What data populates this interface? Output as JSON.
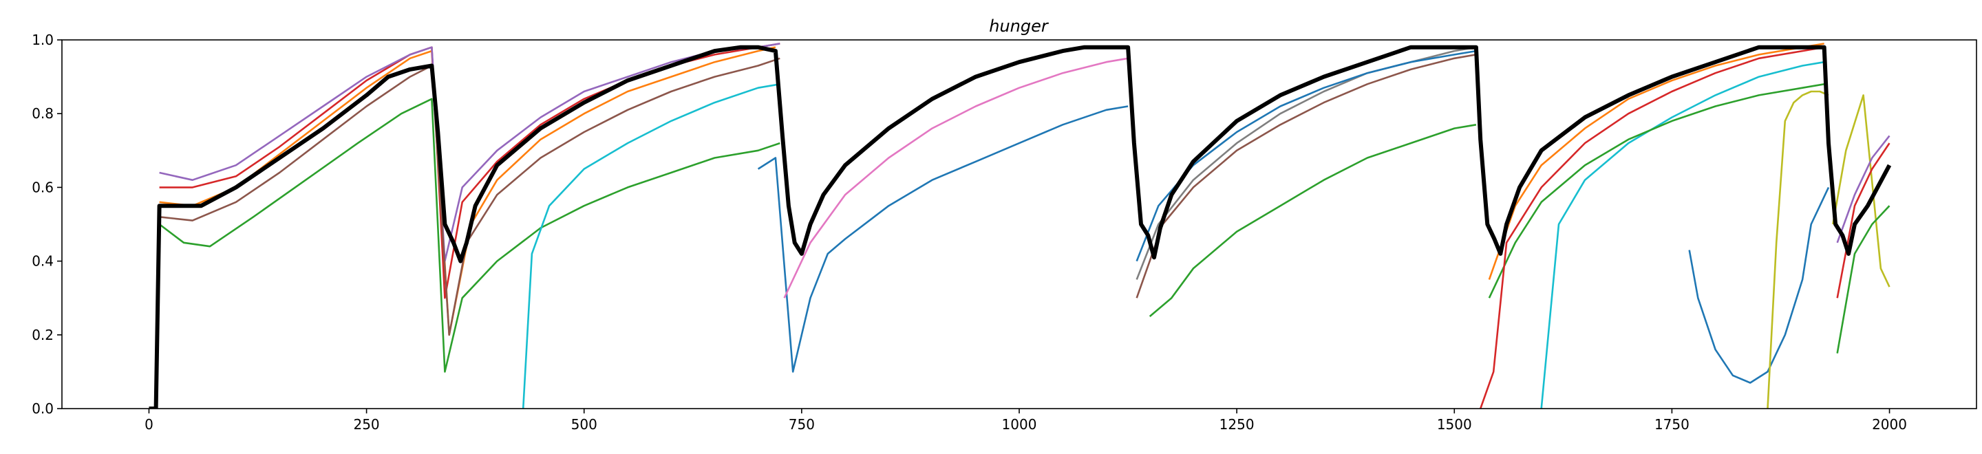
{
  "chart_data": {
    "type": "line",
    "title": "hunger",
    "xlabel": "",
    "ylabel": "",
    "xlim": [
      -100,
      2100
    ],
    "ylim": [
      0.0,
      1.0
    ],
    "x_ticks": [
      0,
      250,
      500,
      750,
      1000,
      1250,
      1500,
      1750,
      2000
    ],
    "y_ticks": [
      0.0,
      0.2,
      0.4,
      0.6,
      0.8,
      1.0
    ],
    "x_tick_labels": [
      "0",
      "250",
      "500",
      "750",
      "1000",
      "1250",
      "1500",
      "1750",
      "2000"
    ],
    "y_tick_labels": [
      "0.0",
      "0.2",
      "0.4",
      "0.6",
      "0.8",
      "1.0"
    ],
    "grid": false,
    "legend": "none",
    "mean_series": {
      "color": "#000000",
      "x": [
        0,
        8,
        12,
        30,
        60,
        100,
        150,
        200,
        250,
        275,
        300,
        325,
        332,
        340,
        350,
        358,
        365,
        375,
        400,
        450,
        500,
        550,
        600,
        650,
        680,
        700,
        720,
        728,
        735,
        742,
        750,
        760,
        775,
        800,
        850,
        900,
        950,
        1000,
        1050,
        1075,
        1100,
        1125,
        1132,
        1140,
        1148,
        1155,
        1162,
        1175,
        1200,
        1250,
        1300,
        1350,
        1400,
        1450,
        1475,
        1500,
        1525,
        1530,
        1538,
        1546,
        1553,
        1560,
        1575,
        1600,
        1650,
        1700,
        1750,
        1800,
        1850,
        1875,
        1900,
        1925,
        1930,
        1938,
        1946,
        1953,
        1960,
        1975,
        2000
      ],
      "values": [
        0.0,
        0.0,
        0.55,
        0.55,
        0.55,
        0.6,
        0.68,
        0.76,
        0.85,
        0.9,
        0.92,
        0.93,
        0.75,
        0.5,
        0.45,
        0.4,
        0.45,
        0.55,
        0.66,
        0.76,
        0.83,
        0.89,
        0.93,
        0.97,
        0.98,
        0.98,
        0.97,
        0.74,
        0.55,
        0.45,
        0.42,
        0.5,
        0.58,
        0.66,
        0.76,
        0.84,
        0.9,
        0.94,
        0.97,
        0.98,
        0.98,
        0.98,
        0.72,
        0.5,
        0.47,
        0.41,
        0.49,
        0.58,
        0.67,
        0.78,
        0.85,
        0.9,
        0.94,
        0.98,
        0.98,
        0.98,
        0.98,
        0.73,
        0.5,
        0.46,
        0.42,
        0.5,
        0.6,
        0.7,
        0.79,
        0.85,
        0.9,
        0.94,
        0.98,
        0.98,
        0.98,
        0.98,
        0.72,
        0.5,
        0.47,
        0.42,
        0.5,
        0.55,
        0.66
      ]
    },
    "series": [
      {
        "color": "#1f77b4",
        "x": [
          1770,
          1780,
          1800,
          1820,
          1840,
          1860,
          1880,
          1900,
          1910,
          1920,
          1930
        ],
        "values": [
          0.43,
          0.3,
          0.16,
          0.09,
          0.07,
          0.1,
          0.2,
          0.35,
          0.5,
          0.55,
          0.6
        ]
      },
      {
        "color": "#1f77b4",
        "x": [
          700,
          720,
          740,
          760,
          780,
          800,
          850,
          900,
          950,
          1000,
          1050,
          1100,
          1125
        ],
        "values": [
          0.65,
          0.68,
          0.1,
          0.3,
          0.42,
          0.46,
          0.55,
          0.62,
          0.67,
          0.72,
          0.77,
          0.81,
          0.82
        ]
      },
      {
        "color": "#ff7f0e",
        "x": [
          12,
          50,
          100,
          150,
          200,
          250,
          300,
          325,
          345,
          370,
          400,
          450,
          500,
          550,
          600,
          650,
          700,
          720
        ],
        "values": [
          0.56,
          0.55,
          0.6,
          0.69,
          0.78,
          0.87,
          0.95,
          0.97,
          0.2,
          0.5,
          0.62,
          0.73,
          0.8,
          0.86,
          0.9,
          0.94,
          0.97,
          0.98
        ]
      },
      {
        "color": "#2ca02c",
        "x": [
          12,
          40,
          70,
          120,
          180,
          240,
          290,
          325,
          340,
          360,
          400,
          450,
          500,
          550,
          600,
          650,
          700,
          725
        ],
        "values": [
          0.5,
          0.45,
          0.44,
          0.52,
          0.62,
          0.72,
          0.8,
          0.84,
          0.1,
          0.3,
          0.4,
          0.49,
          0.55,
          0.6,
          0.64,
          0.68,
          0.7,
          0.72
        ]
      },
      {
        "color": "#2ca02c",
        "x": [
          1150,
          1175,
          1200,
          1250,
          1300,
          1350,
          1400,
          1450,
          1500,
          1525
        ],
        "values": [
          0.25,
          0.3,
          0.38,
          0.48,
          0.55,
          0.62,
          0.68,
          0.72,
          0.76,
          0.77
        ]
      },
      {
        "color": "#d62728",
        "x": [
          12,
          50,
          100,
          150,
          200,
          250,
          300,
          325,
          340,
          360,
          400,
          450,
          500,
          550,
          600,
          650,
          700,
          725
        ],
        "values": [
          0.6,
          0.6,
          0.63,
          0.71,
          0.8,
          0.89,
          0.96,
          0.98,
          0.3,
          0.56,
          0.67,
          0.77,
          0.84,
          0.89,
          0.93,
          0.96,
          0.98,
          0.99
        ]
      },
      {
        "color": "#9467bd",
        "x": [
          12,
          50,
          100,
          150,
          200,
          250,
          300,
          325,
          340,
          360,
          400,
          450,
          500,
          550,
          600,
          650,
          700,
          725
        ],
        "values": [
          0.64,
          0.62,
          0.66,
          0.74,
          0.82,
          0.9,
          0.96,
          0.98,
          0.4,
          0.6,
          0.7,
          0.79,
          0.86,
          0.9,
          0.94,
          0.97,
          0.98,
          0.99
        ]
      },
      {
        "color": "#8c564b",
        "x": [
          12,
          50,
          100,
          150,
          200,
          250,
          300,
          325,
          345,
          365,
          400,
          450,
          500,
          550,
          600,
          650,
          700,
          725
        ],
        "values": [
          0.52,
          0.51,
          0.56,
          0.64,
          0.73,
          0.82,
          0.9,
          0.93,
          0.2,
          0.45,
          0.58,
          0.68,
          0.75,
          0.81,
          0.86,
          0.9,
          0.93,
          0.95
        ]
      },
      {
        "color": "#e377c2",
        "x": [
          730,
          760,
          800,
          850,
          900,
          950,
          1000,
          1050,
          1100,
          1125
        ],
        "values": [
          0.3,
          0.45,
          0.58,
          0.68,
          0.76,
          0.82,
          0.87,
          0.91,
          0.94,
          0.95
        ]
      },
      {
        "color": "#7f7f7f",
        "x": [
          1135,
          1160,
          1200,
          1250,
          1300,
          1350,
          1400,
          1450,
          1500,
          1525
        ],
        "values": [
          0.35,
          0.5,
          0.62,
          0.72,
          0.8,
          0.86,
          0.91,
          0.94,
          0.97,
          0.98
        ]
      },
      {
        "color": "#bcbd22",
        "x": [
          1860,
          1870,
          1880,
          1890,
          1900,
          1910,
          1920,
          1930
        ],
        "values": [
          0.0,
          0.45,
          0.78,
          0.83,
          0.85,
          0.86,
          0.86,
          0.85
        ]
      },
      {
        "color": "#bcbd22",
        "x": [
          1935,
          1950,
          1970,
          1990,
          2000
        ],
        "values": [
          0.5,
          0.7,
          0.85,
          0.38,
          0.33
        ]
      },
      {
        "color": "#17becf",
        "x": [
          430,
          440,
          460,
          500,
          550,
          600,
          650,
          700,
          725
        ],
        "values": [
          0.0,
          0.42,
          0.55,
          0.65,
          0.72,
          0.78,
          0.83,
          0.87,
          0.88
        ]
      },
      {
        "color": "#17becf",
        "x": [
          1600,
          1620,
          1650,
          1700,
          1750,
          1800,
          1850,
          1900,
          1925
        ],
        "values": [
          0.0,
          0.5,
          0.62,
          0.72,
          0.79,
          0.85,
          0.9,
          0.93,
          0.94
        ]
      },
      {
        "color": "#1f77b4",
        "x": [
          1135,
          1160,
          1200,
          1250,
          1300,
          1350,
          1400,
          1450,
          1500,
          1525
        ],
        "values": [
          0.4,
          0.55,
          0.66,
          0.75,
          0.82,
          0.87,
          0.91,
          0.94,
          0.96,
          0.97
        ]
      },
      {
        "color": "#ff7f0e",
        "x": [
          1540,
          1570,
          1600,
          1650,
          1700,
          1750,
          1800,
          1850,
          1900,
          1925
        ],
        "values": [
          0.35,
          0.55,
          0.66,
          0.76,
          0.84,
          0.89,
          0.93,
          0.96,
          0.98,
          0.99
        ]
      },
      {
        "color": "#2ca02c",
        "x": [
          1540,
          1570,
          1600,
          1650,
          1700,
          1750,
          1800,
          1850,
          1900,
          1925
        ],
        "values": [
          0.3,
          0.45,
          0.56,
          0.66,
          0.73,
          0.78,
          0.82,
          0.85,
          0.87,
          0.88
        ]
      },
      {
        "color": "#d62728",
        "x": [
          1530,
          1545,
          1560,
          1600,
          1650,
          1700,
          1750,
          1800,
          1850,
          1900,
          1925
        ],
        "values": [
          0.0,
          0.1,
          0.45,
          0.6,
          0.72,
          0.8,
          0.86,
          0.91,
          0.95,
          0.97,
          0.98
        ]
      },
      {
        "color": "#9467bd",
        "x": [
          1940,
          1960,
          1980,
          2000
        ],
        "values": [
          0.45,
          0.58,
          0.68,
          0.74
        ]
      },
      {
        "color": "#d62728",
        "x": [
          1940,
          1960,
          1980,
          2000
        ],
        "values": [
          0.3,
          0.55,
          0.65,
          0.72
        ]
      },
      {
        "color": "#2ca02c",
        "x": [
          1940,
          1960,
          1980,
          2000
        ],
        "values": [
          0.15,
          0.42,
          0.5,
          0.55
        ]
      },
      {
        "color": "#8c564b",
        "x": [
          1135,
          1165,
          1200,
          1250,
          1300,
          1350,
          1400,
          1450,
          1500,
          1525
        ],
        "values": [
          0.3,
          0.5,
          0.6,
          0.7,
          0.77,
          0.83,
          0.88,
          0.92,
          0.95,
          0.96
        ]
      }
    ]
  }
}
